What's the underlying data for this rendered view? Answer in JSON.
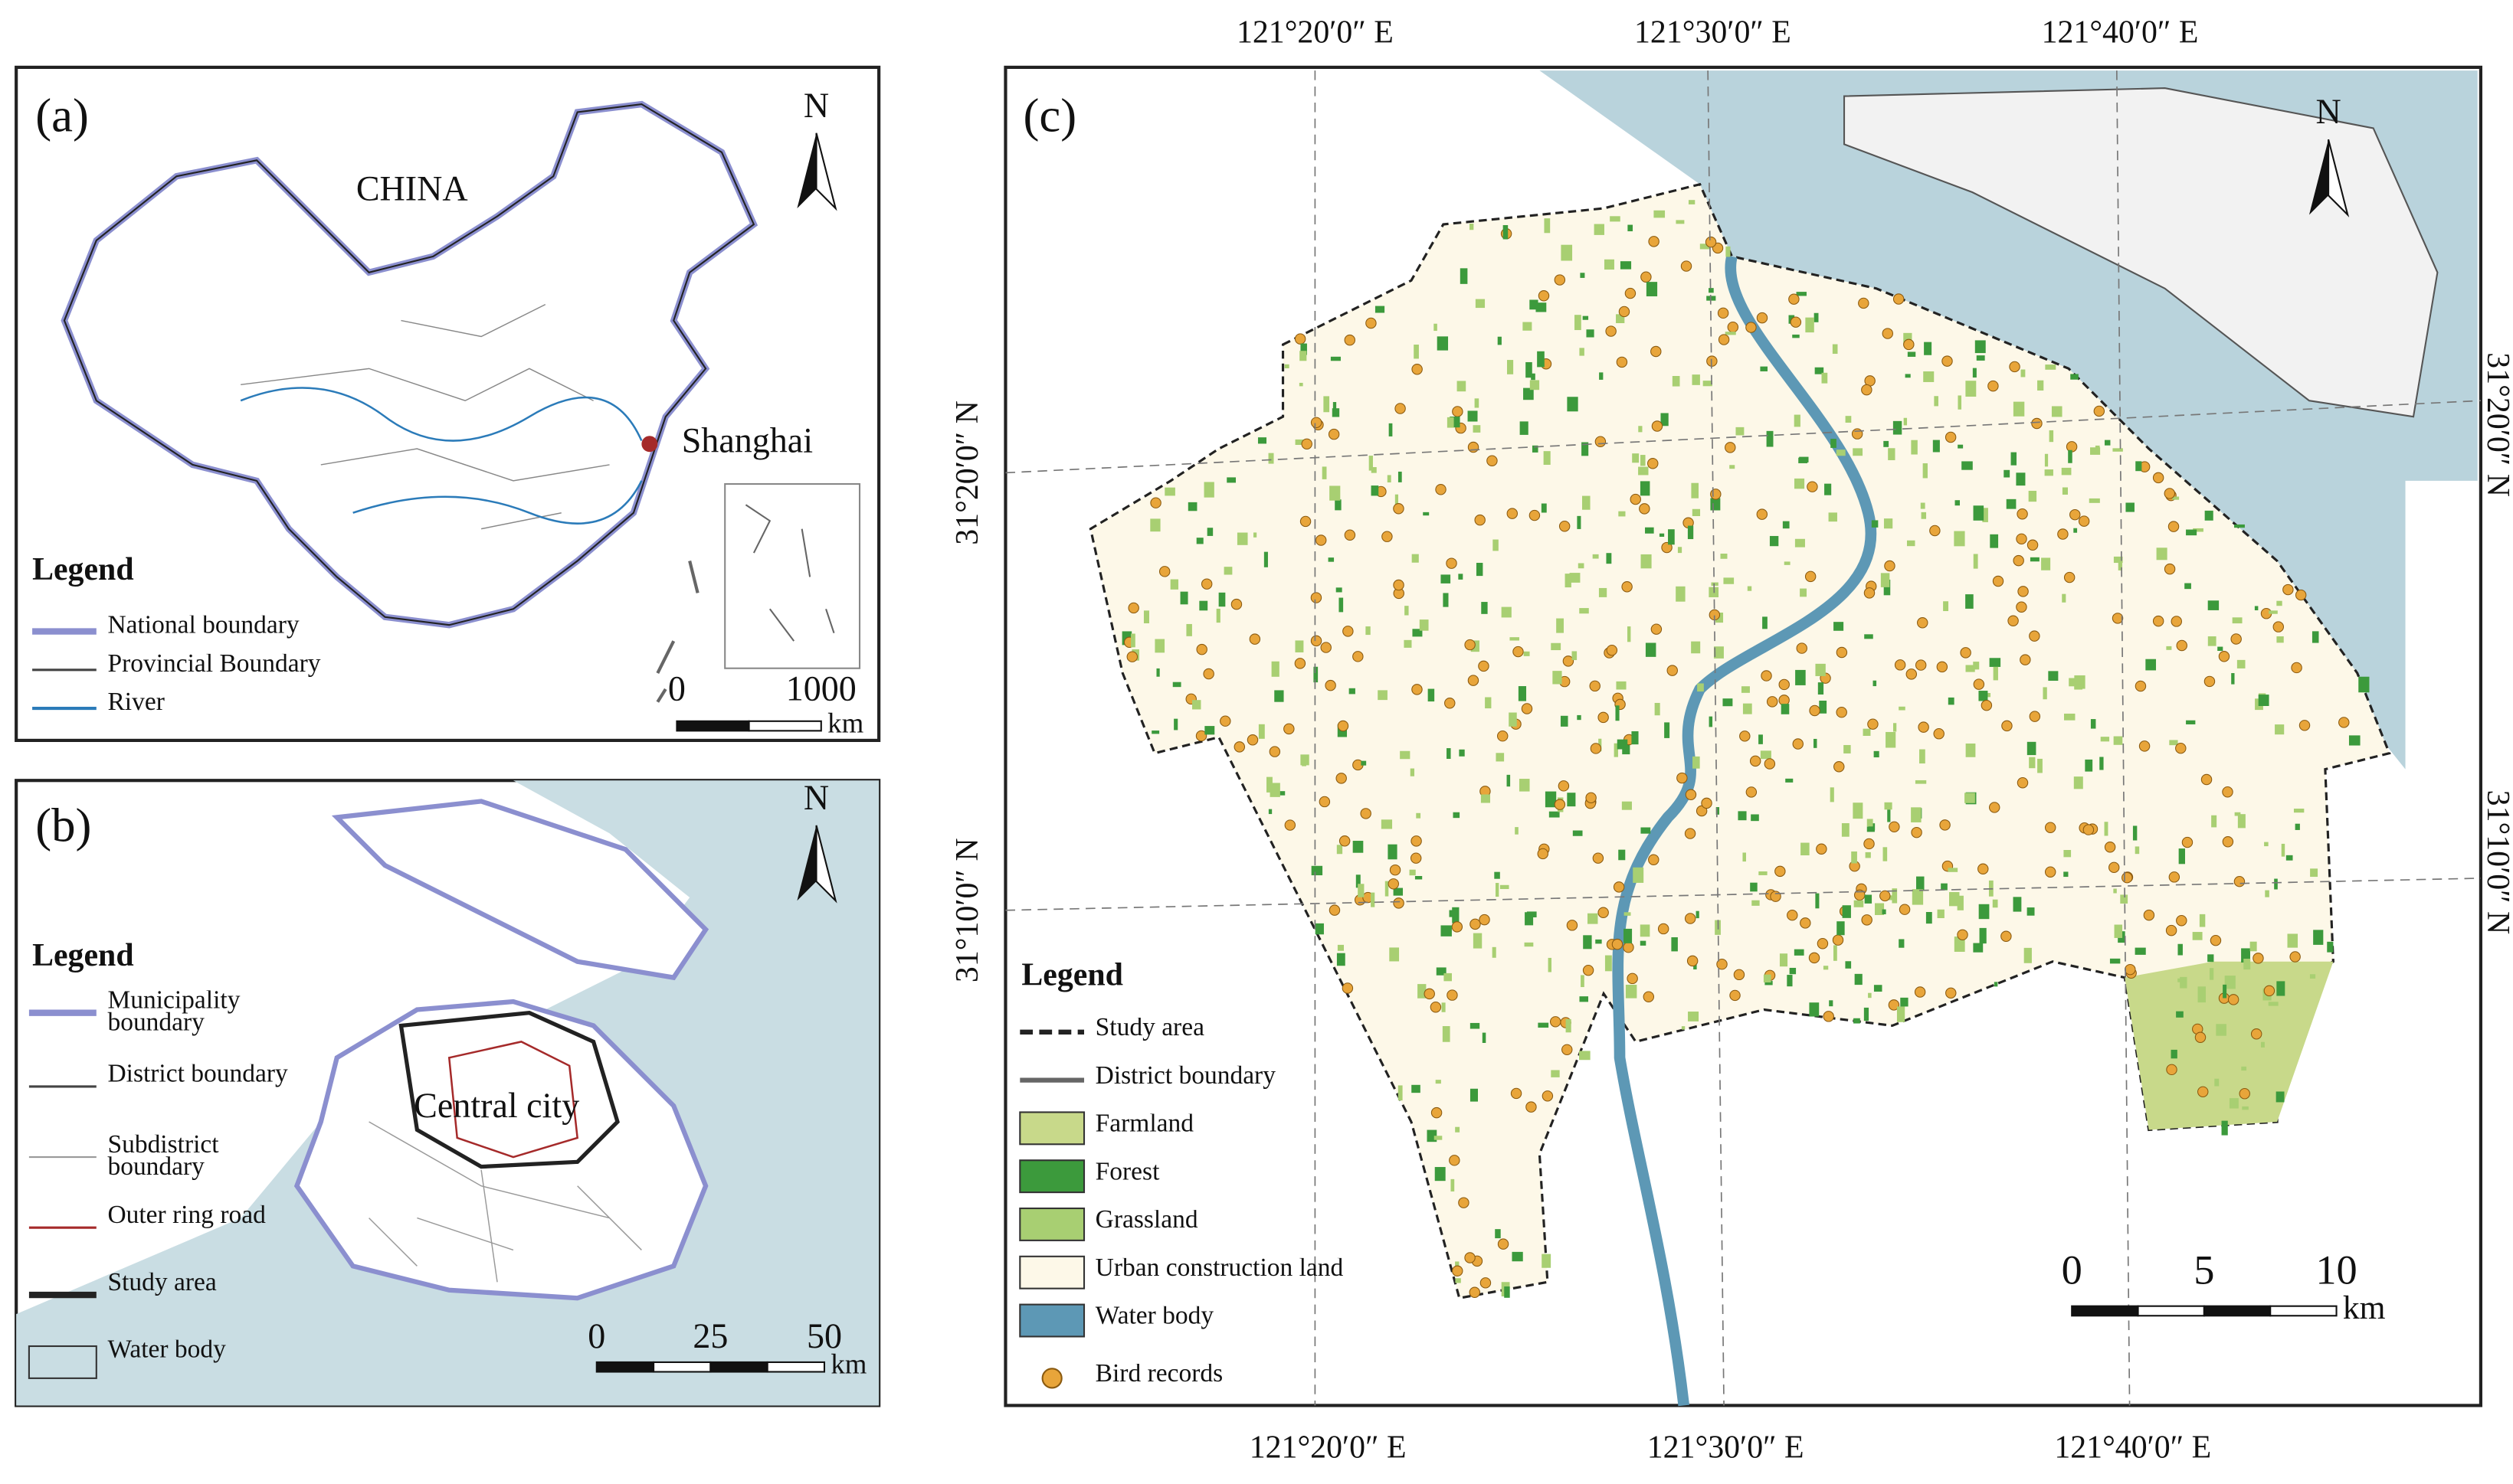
{
  "panels": [
    {
      "label": "(a)",
      "north": "N",
      "place_labels": [
        "CHINA",
        "Shanghai"
      ],
      "legend": {
        "title": "Legend",
        "items": [
          "National boundary",
          "Provincial Boundary",
          "River"
        ]
      },
      "scale_bar": {
        "ticks": [
          0,
          1000
        ],
        "unit": "km"
      }
    },
    {
      "label": "(b)",
      "north": "N",
      "place_labels": [
        "Central city"
      ],
      "legend": {
        "title": "Legend",
        "items": [
          "Municipality boundary",
          "District boundary",
          "Subdistrict boundary",
          "Outer ring road",
          "Study area",
          "Water body"
        ]
      },
      "scale_bar": {
        "ticks": [
          0,
          25,
          50
        ],
        "unit": "km"
      }
    },
    {
      "label": "(c)",
      "north": "N",
      "legend": {
        "title": "Legend",
        "items": [
          "Study area",
          "District boundary",
          "Farmland",
          "Forest",
          "Grassland",
          "Urban construction land",
          "Water body",
          "Bird records"
        ]
      },
      "scale_bar": {
        "ticks": [
          0,
          5,
          10
        ],
        "unit": "km"
      },
      "top_labels": [
        "121°20′0″ E",
        "121°30′0″ E",
        "121°40′0″ E"
      ],
      "bottom_labels": [
        "121°20′0″ E",
        "121°30′0″ E",
        "121°40′0″ E"
      ],
      "left_labels": [
        "31°20′0″ N",
        "31°10′0″ N"
      ],
      "right_labels": [
        "31°20′0″ N",
        "31°10′0″ N"
      ]
    }
  ]
}
